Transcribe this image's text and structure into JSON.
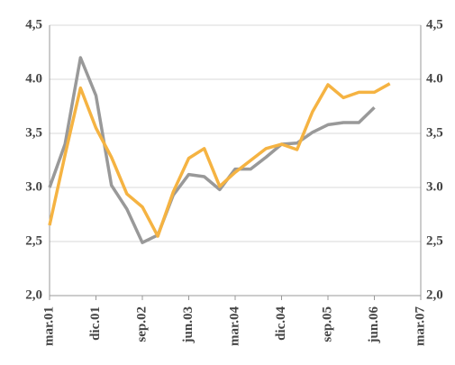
{
  "chart_data": {
    "type": "line",
    "categories": [
      "mar.01",
      null,
      null,
      "dic.01",
      null,
      null,
      "sep.02",
      null,
      null,
      "jun.03",
      null,
      null,
      "mar.04",
      null,
      null,
      "dic.04",
      null,
      null,
      "sep.05",
      null,
      null,
      "jun.06",
      null,
      null,
      "mar.07"
    ],
    "series": [
      {
        "color": "#999999",
        "values": [
          3.0,
          3.4,
          4.2,
          3.85,
          3.02,
          2.8,
          2.49,
          2.56,
          2.93,
          3.12,
          3.1,
          2.98,
          3.17,
          3.17,
          3.28,
          3.4,
          3.41,
          3.51,
          3.58,
          3.6,
          3.6,
          3.74,
          null,
          null,
          null
        ]
      },
      {
        "color": "#f5b342",
        "values": [
          2.65,
          3.3,
          3.92,
          3.55,
          3.28,
          2.94,
          2.82,
          2.55,
          2.96,
          3.27,
          3.36,
          3.01,
          3.14,
          3.25,
          3.36,
          3.4,
          3.35,
          3.7,
          3.95,
          3.83,
          3.88,
          3.88,
          3.96,
          null,
          null
        ]
      }
    ],
    "ylim": [
      2.0,
      4.5
    ],
    "yticks": [
      {
        "value": 2.0,
        "label": "2,0"
      },
      {
        "value": 2.5,
        "label": "2,5"
      },
      {
        "value": 3.0,
        "label": "3.0"
      },
      {
        "value": 3.5,
        "label": "3,5"
      },
      {
        "value": 4.0,
        "label": "4.0"
      },
      {
        "value": 4.5,
        "label": "4,5"
      }
    ],
    "grid": true
  }
}
